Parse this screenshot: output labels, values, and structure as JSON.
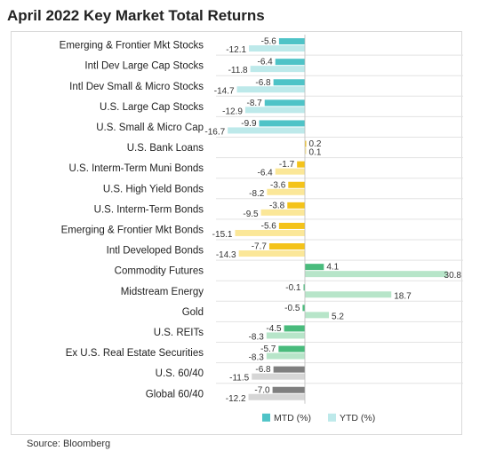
{
  "chart_data": {
    "type": "bar",
    "orientation": "horizontal",
    "title": "April 2022 Key Market Total Returns",
    "source": "Source: Bloomberg",
    "categories": [
      "Emerging & Frontier Mkt Stocks",
      "Intl Dev Large Cap Stocks",
      "Intl Dev Small & Micro Stocks",
      "U.S. Large Cap Stocks",
      "U.S. Small & Micro Cap",
      "U.S. Bank Loans",
      "U.S. Interm-Term Muni Bonds",
      "U.S. High Yield Bonds",
      "U.S. Interm-Term Bonds",
      "Emerging & Frontier Mkt Bonds",
      "Intl Developed Bonds",
      "Commodity Futures",
      "Midstream Energy",
      "Gold",
      "U.S. REITs",
      "Ex U.S. Real Estate Securities",
      "U.S. 60/40",
      "Global 60/40"
    ],
    "series": [
      {
        "name": "MTD (%)",
        "values": [
          -5.6,
          -6.4,
          -6.8,
          -8.7,
          -9.9,
          0.2,
          -1.7,
          -3.6,
          -3.8,
          -5.6,
          -7.7,
          4.1,
          -0.1,
          -0.5,
          -4.5,
          -5.7,
          -6.8,
          -7.0
        ]
      },
      {
        "name": "YTD (%)",
        "values": [
          -12.1,
          -11.8,
          -14.7,
          -12.9,
          -16.7,
          0.1,
          -6.4,
          -8.2,
          -9.5,
          -15.1,
          -14.3,
          30.8,
          18.7,
          5.2,
          -8.3,
          -8.3,
          -11.5,
          -12.2
        ]
      }
    ],
    "value_labels": {
      "mtd": [
        "-5.6",
        "-6.4",
        "-6.8",
        "-8.7",
        "-9.9",
        "0.2",
        "-1.7",
        "-3.6",
        "-3.8",
        "-5.6",
        "-7.7",
        "4.1",
        "-0.1",
        "-0.5",
        "-4.5",
        "-5.7",
        "-6.8",
        "-7.0"
      ],
      "ytd": [
        "-12.1",
        "-11.8",
        "-14.7",
        "-12.9",
        "-16.7",
        "0.1",
        "-6.4",
        "-8.2",
        "-9.5",
        "-15.1",
        "-14.3",
        "30.8",
        "18.7",
        "5.2",
        "-8.3",
        "-8.3",
        "-11.5",
        "-12.2"
      ]
    },
    "groups": [
      "equity",
      "equity",
      "equity",
      "equity",
      "equity",
      "fixed",
      "fixed",
      "fixed",
      "fixed",
      "fixed",
      "fixed",
      "real",
      "real",
      "real",
      "real",
      "real",
      "balanced",
      "balanced"
    ],
    "colors": {
      "equity": {
        "mtd": "#4ec3c7",
        "ytd": "#bde9ea"
      },
      "fixed": {
        "mtd": "#f4c31a",
        "ytd": "#fbe798"
      },
      "real": {
        "mtd": "#49bb7c",
        "ytd": "#b7e5c9"
      },
      "balanced": {
        "mtd": "#7f7f7f",
        "ytd": "#d6d6d6"
      }
    },
    "legend": {
      "mtd": "MTD (%)",
      "ytd": "YTD (%)",
      "position": "bottom-center"
    },
    "xlim": [
      -20,
      32
    ],
    "gridlines": "horizontal separators",
    "grid": true
  }
}
